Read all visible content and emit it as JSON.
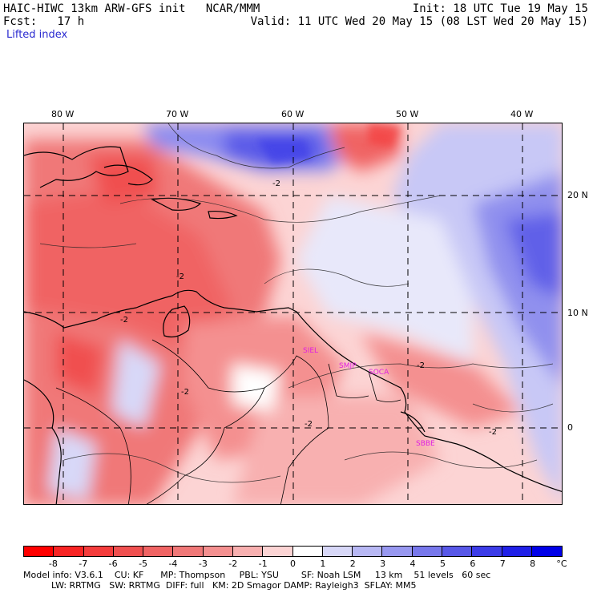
{
  "header": {
    "line1_left": "HAIC-HIWC 13km ARW-GFS init   NCAR/MMM",
    "line1_right": "Init: 18 UTC Tue 19 May 15",
    "line2_left": "Fcst:   17 h",
    "line2_right": "Valid: 11 UTC Wed 20 May 15 (08 LST Wed 20 May 15)",
    "field_name": "Lifted index"
  },
  "map": {
    "lon_labels": [
      "80 W",
      "70 W",
      "60 W",
      "50 W",
      "40 W"
    ],
    "lat_labels": [
      "20 N",
      "10 N",
      "0"
    ],
    "contour_labels": [
      "-2",
      "-2",
      "-2",
      "-2",
      "-2",
      "-2",
      "-2"
    ],
    "stations": [
      "SIEL",
      "SMJP",
      "SOCA",
      "SBBE"
    ]
  },
  "colorbar": {
    "unit": "°C",
    "labels": [
      "-8",
      "-7",
      "-6",
      "-5",
      "-4",
      "-3",
      "-2",
      "-1",
      "0",
      "1",
      "2",
      "3",
      "4",
      "5",
      "6",
      "7",
      "8"
    ],
    "colors": [
      "#ff0000",
      "#f82424",
      "#f43c3c",
      "#f05050",
      "#f06464",
      "#f07878",
      "#f49090",
      "#f8b0b0",
      "#fcd4d4",
      "#ffffff",
      "#d8d8f8",
      "#b8b8f4",
      "#9898f0",
      "#7878ec",
      "#5858e8",
      "#3c3ce8",
      "#2020e8",
      "#0000e8"
    ]
  },
  "footer": {
    "line1": "Model info: V3.6.1    CU: KF      MP: Thompson     PBL: YSU        SF: Noah LSM     13 km    51 levels   60 sec",
    "line2": "          LW: RRTMG   SW: RRTMG  DIFF: full   KM: 2D Smagor DAMP: Rayleigh3  SFLAY: MM5"
  }
}
